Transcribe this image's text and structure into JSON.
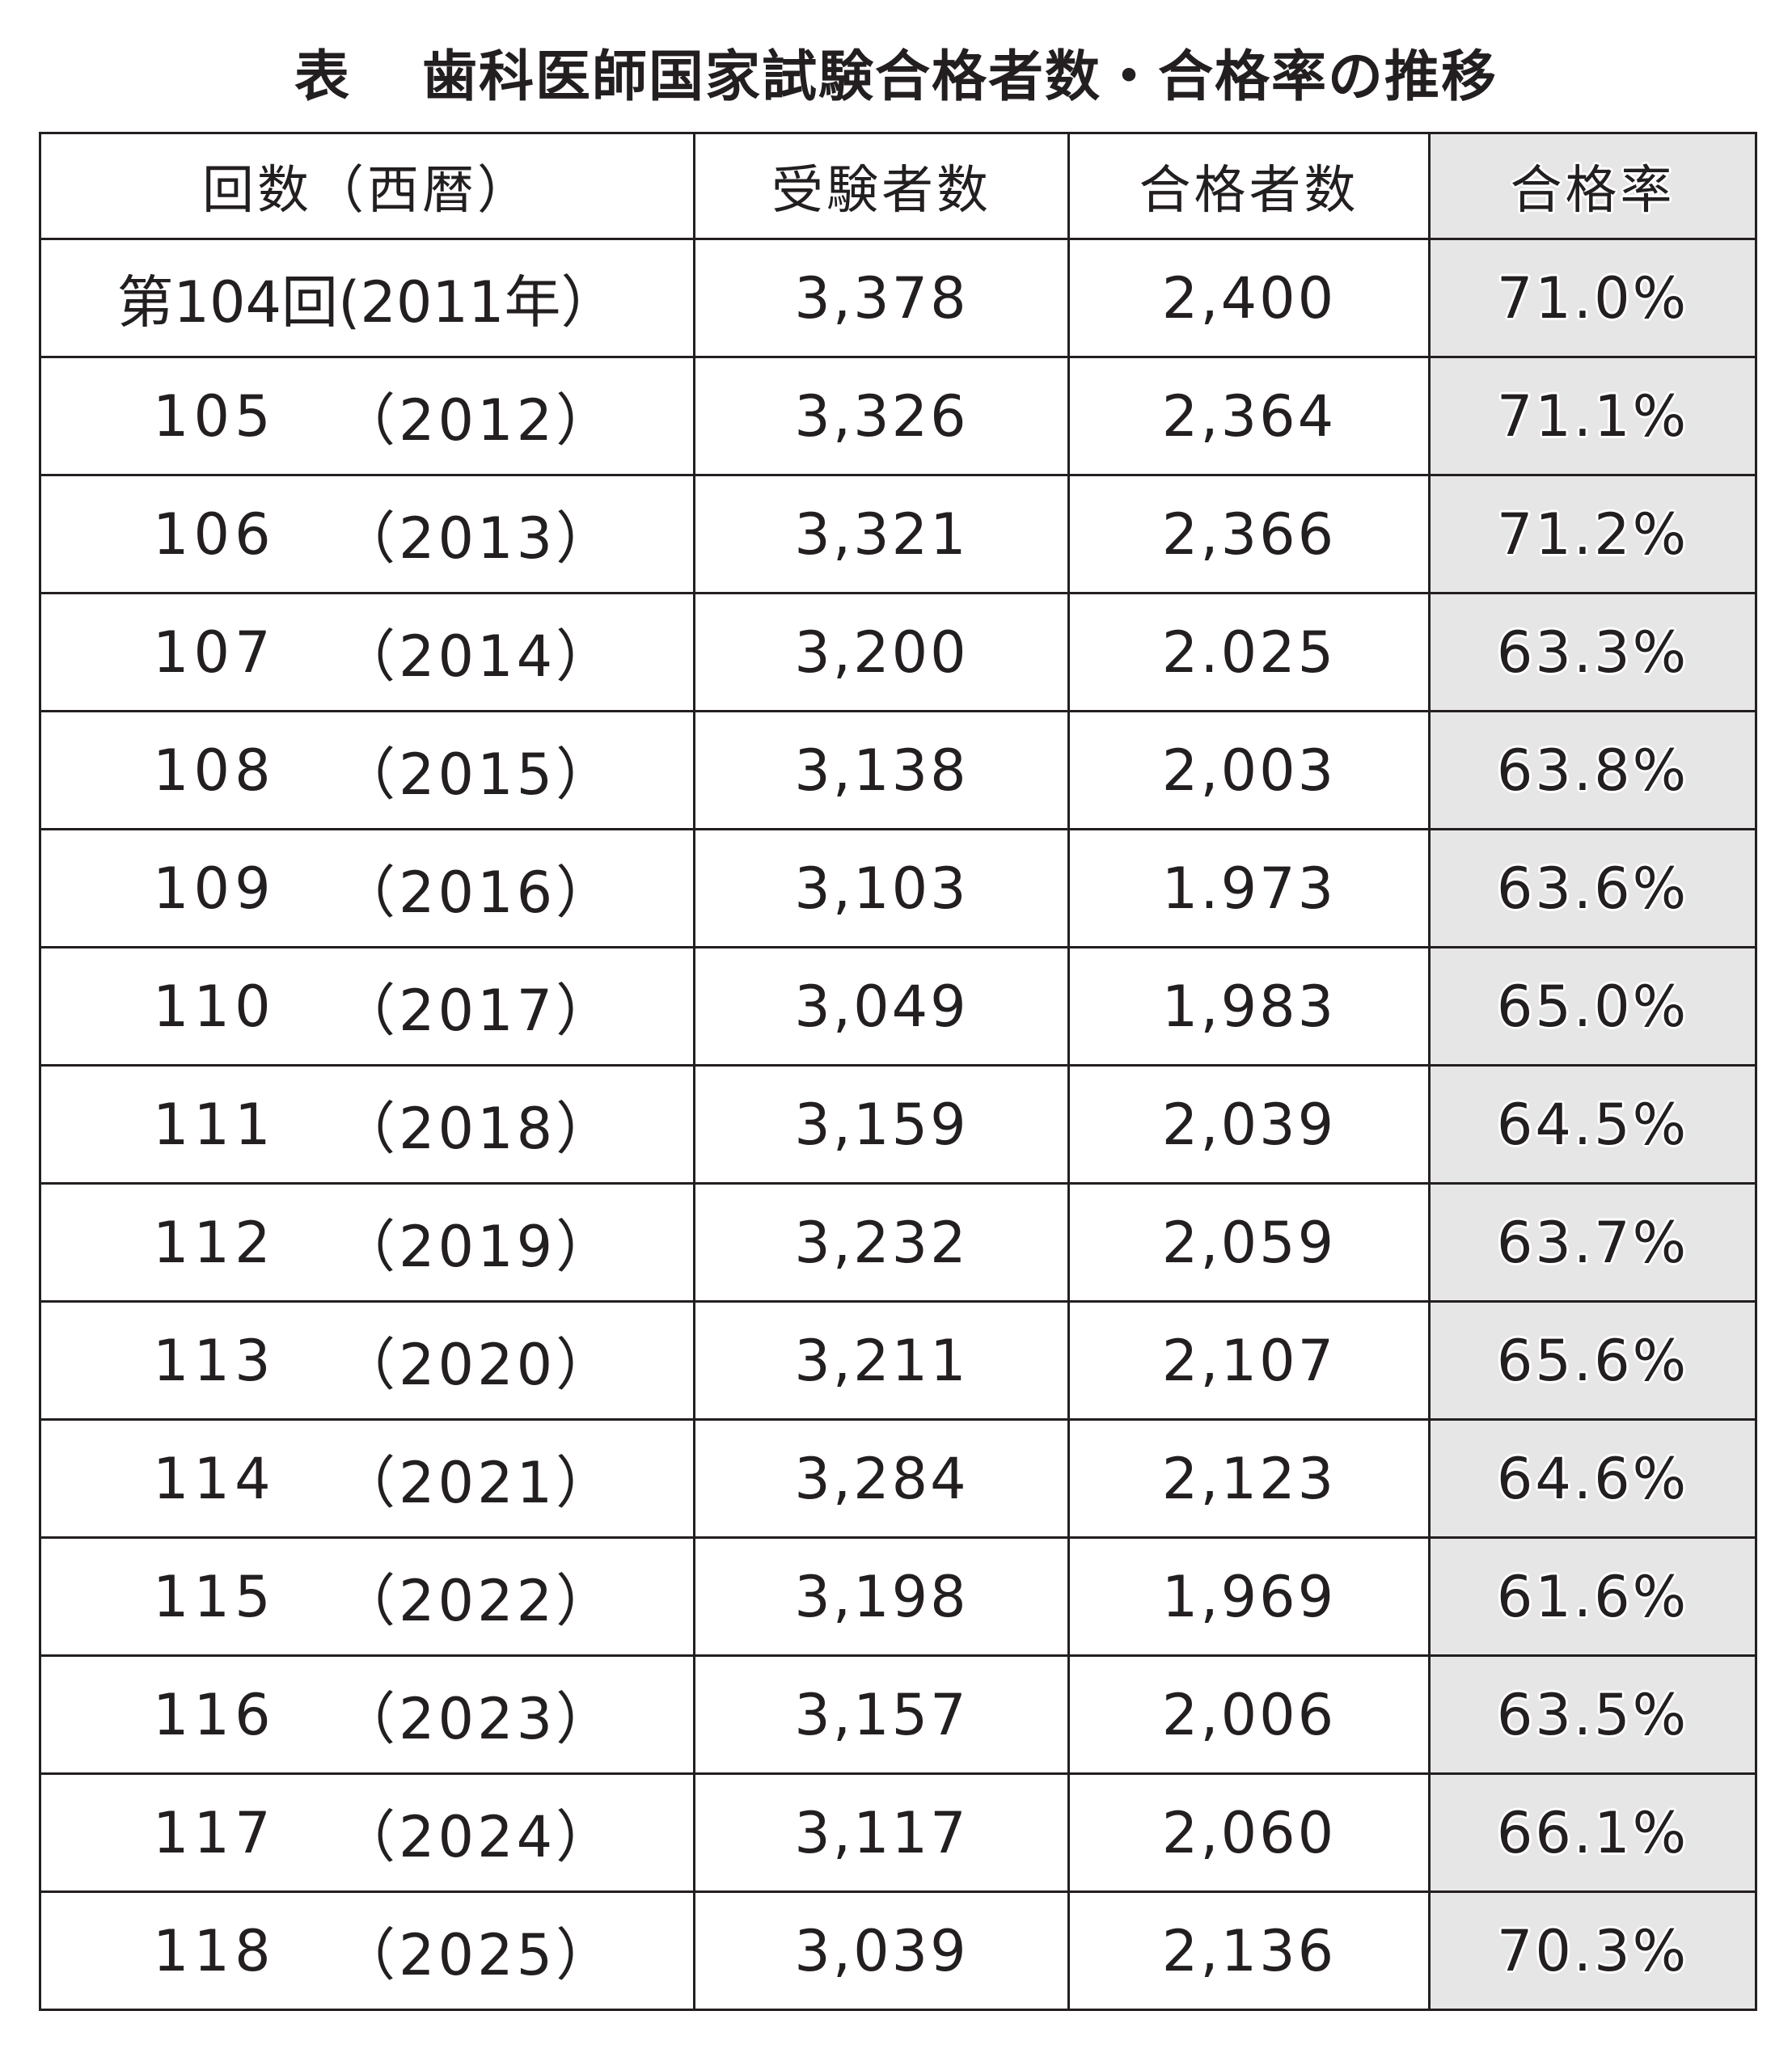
{
  "title": {
    "label": "表",
    "text": "歯科医師国家試験合格者数・合格率の推移"
  },
  "table": {
    "headers": [
      "回数（西暦）",
      "受験者数",
      "合格者数",
      "合格率"
    ],
    "first_row_session": "第104回(2011年）",
    "rows": [
      {
        "session": "第104回",
        "year": "(2011年）",
        "examinees": "3,378",
        "passers": "2,400",
        "rate": "71.0%"
      },
      {
        "session": "105",
        "year": "（2012）",
        "examinees": "3,326",
        "passers": "2,364",
        "rate": "71.1%"
      },
      {
        "session": "106",
        "year": "（2013）",
        "examinees": "3,321",
        "passers": "2,366",
        "rate": "71.2%"
      },
      {
        "session": "107",
        "year": "（2014）",
        "examinees": "3,200",
        "passers": "2.025",
        "rate": "63.3%"
      },
      {
        "session": "108",
        "year": "（2015）",
        "examinees": "3,138",
        "passers": "2,003",
        "rate": "63.8%"
      },
      {
        "session": "109",
        "year": "（2016）",
        "examinees": "3,103",
        "passers": "1.973",
        "rate": "63.6%"
      },
      {
        "session": "110",
        "year": "（2017）",
        "examinees": "3,049",
        "passers": "1,983",
        "rate": "65.0%"
      },
      {
        "session": "111",
        "year": "（2018）",
        "examinees": "3,159",
        "passers": "2,039",
        "rate": "64.5%"
      },
      {
        "session": "112",
        "year": "（2019）",
        "examinees": "3,232",
        "passers": "2,059",
        "rate": "63.7%"
      },
      {
        "session": "113",
        "year": "（2020）",
        "examinees": "3,211",
        "passers": "2,107",
        "rate": "65.6%"
      },
      {
        "session": "114",
        "year": "（2021）",
        "examinees": "3,284",
        "passers": "2,123",
        "rate": "64.6%"
      },
      {
        "session": "115",
        "year": "（2022）",
        "examinees": "3,198",
        "passers": "1,969",
        "rate": "61.6%"
      },
      {
        "session": "116",
        "year": "（2023）",
        "examinees": "3,157",
        "passers": "2,006",
        "rate": "63.5%"
      },
      {
        "session": "117",
        "year": "（2024）",
        "examinees": "3,117",
        "passers": "2,060",
        "rate": "66.1%"
      },
      {
        "session": "118",
        "year": "（2025）",
        "examinees": "3,039",
        "passers": "2,136",
        "rate": "70.3%"
      }
    ]
  },
  "colors": {
    "text": "#231f20",
    "rate_column_bg": "#e6e6e6",
    "background": "#ffffff"
  }
}
